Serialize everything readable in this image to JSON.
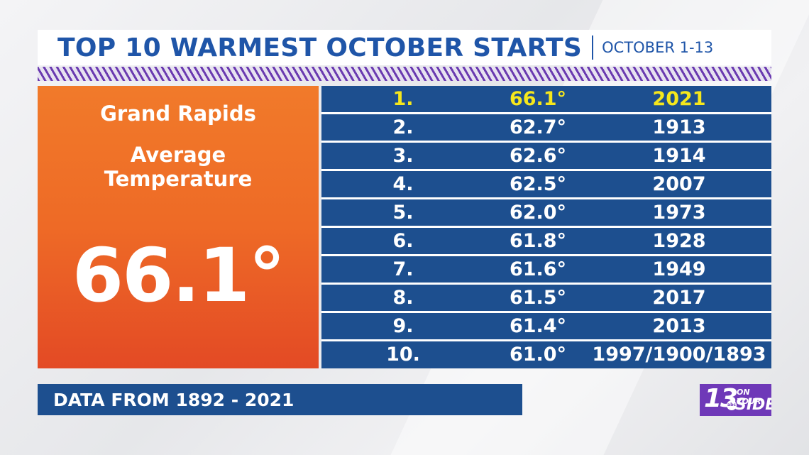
{
  "header": {
    "title": "TOP 10 WARMEST OCTOBER STARTS",
    "subtitle": "OCTOBER 1-13"
  },
  "panel": {
    "city": "Grand Rapids",
    "label_line1": "Average",
    "label_line2": "Temperature",
    "value": "66.1°"
  },
  "rankings": [
    {
      "rank": "1.",
      "temp": "66.1°",
      "year": "2021"
    },
    {
      "rank": "2.",
      "temp": "62.7°",
      "year": "1913"
    },
    {
      "rank": "3.",
      "temp": "62.6°",
      "year": "1914"
    },
    {
      "rank": "4.",
      "temp": "62.5°",
      "year": "2007"
    },
    {
      "rank": "5.",
      "temp": "62.0°",
      "year": "1973"
    },
    {
      "rank": "6.",
      "temp": "61.8°",
      "year": "1928"
    },
    {
      "rank": "7.",
      "temp": "61.6°",
      "year": "1949"
    },
    {
      "rank": "8.",
      "temp": "61.5°",
      "year": "2017"
    },
    {
      "rank": "9.",
      "temp": "61.4°",
      "year": "2013"
    },
    {
      "rank": "10.",
      "temp": "61.0°",
      "year": "1997/1900/1893"
    }
  ],
  "footer": {
    "text": "DATA FROM 1892 - 2021"
  },
  "logo": {
    "number": "13",
    "on_your": "ON YOUR",
    "side": "SIDE",
    "abc": "abc"
  },
  "colors": {
    "title_blue": "#1f55a8",
    "row_blue": "#1d4f8f",
    "highlight_yellow": "#f6e71c",
    "panel_orange": "#ee6a26",
    "logo_purple": "#6f39b8"
  }
}
